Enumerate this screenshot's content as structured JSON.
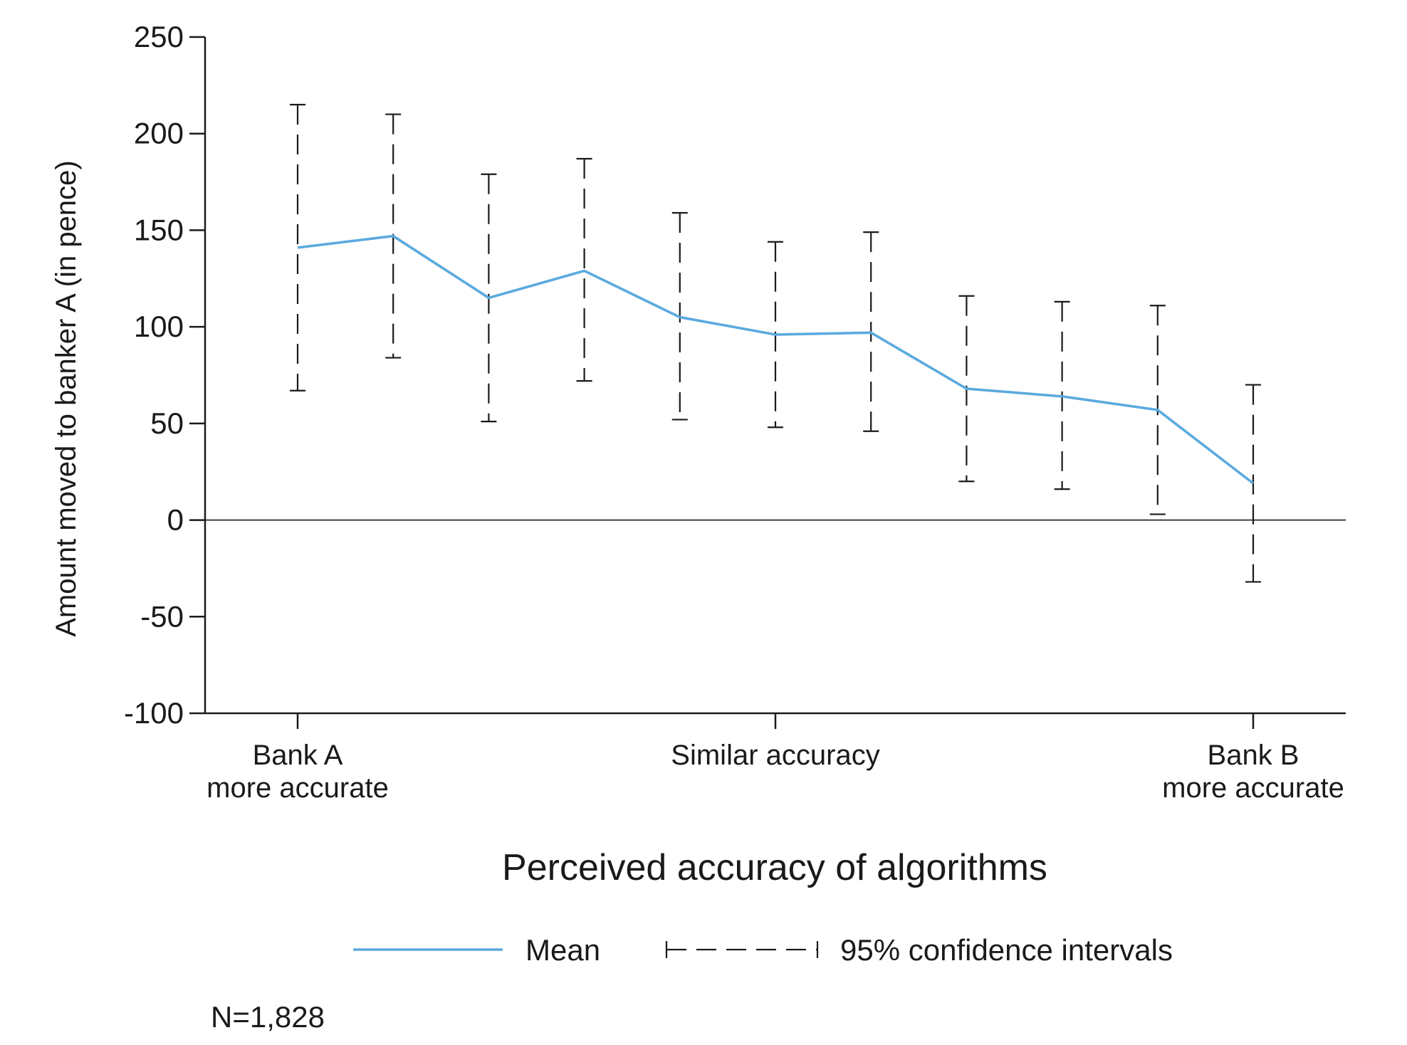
{
  "chart_data": {
    "type": "line",
    "xlabel": "Perceived accuracy of algorithms",
    "ylabel": "Amount moved to banker A (in pence)",
    "ylim": [
      -100,
      250
    ],
    "yticks": [
      250,
      200,
      150,
      100,
      50,
      0,
      -50,
      -100
    ],
    "x": [
      1,
      2,
      3,
      4,
      5,
      6,
      7,
      8,
      9,
      10,
      11
    ],
    "xlim": [
      1,
      11
    ],
    "x_tick_labels": [
      {
        "x": 1,
        "lines": [
          "Bank A",
          "more accurate"
        ]
      },
      {
        "x": 6,
        "lines": [
          "Similar accuracy"
        ]
      },
      {
        "x": 11,
        "lines": [
          "Bank B",
          "more accurate"
        ]
      }
    ],
    "series": [
      {
        "name": "Mean",
        "color": "#5aaade",
        "values": [
          141,
          147,
          115,
          129,
          105,
          96,
          97,
          68,
          64,
          57,
          19
        ]
      }
    ],
    "error_bars": {
      "name": "95% confidence intervals",
      "color": "#1a1a1a",
      "lower": [
        67,
        84,
        51,
        72,
        52,
        48,
        46,
        20,
        16,
        3,
        -32
      ],
      "upper": [
        215,
        210,
        179,
        187,
        159,
        144,
        149,
        116,
        113,
        111,
        70
      ]
    },
    "reference_line": 0,
    "grid": false,
    "legend_position": "bottom"
  },
  "note": "N=1,828"
}
